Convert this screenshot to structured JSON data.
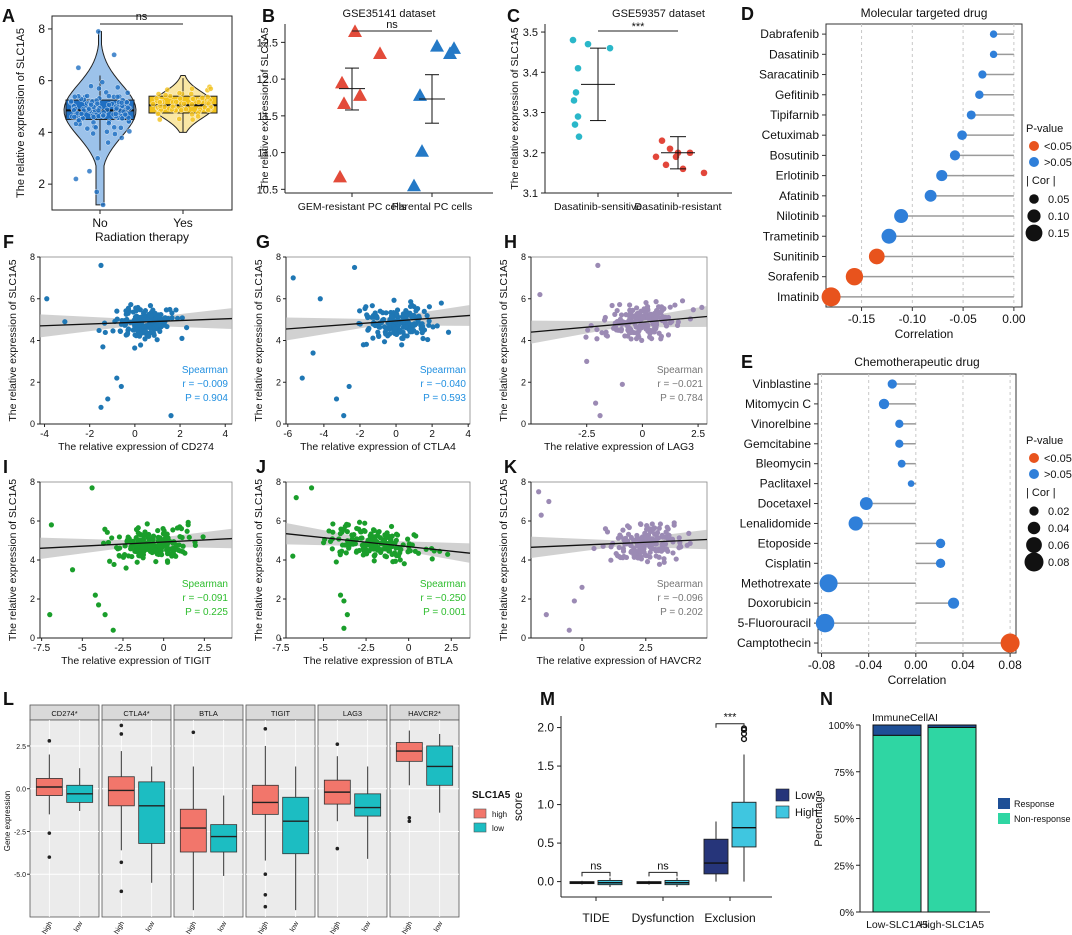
{
  "colors": {
    "sig": "#e8531d",
    "nonsig": "#2f7fd9",
    "box_blue": "#1f6fc2",
    "box_yellow": "#f2c21b",
    "red_tri": "#e34b3a",
    "blue_tri": "#2479c6",
    "teal": "#2ab7c9",
    "red_dot": "#e2463a",
    "scatter_blue": "#1f77b4",
    "scatter_green": "#1a9e2b",
    "scatter_purple": "#9b8ab4",
    "high": "#f2766b",
    "low": "#1cbdc2",
    "navy": "#26357a",
    "cyan": "#3fc6e0",
    "response": "#1e4f96",
    "nonresponse": "#2fd6a3"
  },
  "chart_data": [
    {
      "panel": "A",
      "type": "violin-box",
      "xlabel": "Radiation therapy",
      "ylabel": "The relative expression of SLC1A5",
      "ylim": [
        1,
        8.5
      ],
      "yticks": [
        "2",
        "4",
        "6",
        "8"
      ],
      "categories": [
        "No",
        "Yes"
      ],
      "annotation": "ns",
      "groups": [
        {
          "name": "No",
          "median": 4.85,
          "q1": 4.5,
          "q3": 5.25,
          "whisker_low": 3.3,
          "whisker_high": 6.2,
          "min": 1.2,
          "max": 7.9
        },
        {
          "name": "Yes",
          "median": 5.05,
          "q1": 4.75,
          "q3": 5.4,
          "whisker_low": 4.0,
          "whisker_high": 6.1,
          "min": 4.0,
          "max": 6.2
        }
      ]
    },
    {
      "panel": "B",
      "type": "scatter-errorbar",
      "title": "GSE35141 dataset",
      "ylabel": "The relative expression of SLC1A5",
      "ylim": [
        10.45,
        12.75
      ],
      "yticks": [
        "10.5",
        "11.0",
        "11.5",
        "12.0",
        "12.5"
      ],
      "categories": [
        "GEM-resistant PC cells",
        "Parental PC cells"
      ],
      "annotation": "ns",
      "groups": [
        {
          "name": "GEM-resistant PC cells",
          "values": [
            12.65,
            12.35,
            11.95,
            11.67,
            11.78,
            10.67
          ],
          "mean": 11.87,
          "low": 11.58,
          "high": 12.15
        },
        {
          "name": "Parental PC cells",
          "values": [
            12.45,
            12.42,
            12.35,
            11.78,
            11.02,
            10.55
          ],
          "mean": 11.73,
          "low": 11.4,
          "high": 12.06
        }
      ]
    },
    {
      "panel": "C",
      "type": "scatter-errorbar",
      "title": "GSE59357 dataset",
      "ylabel": "The relative expression of SLC1A5",
      "ylim": [
        3.1,
        3.52
      ],
      "yticks": [
        "3.1",
        "3.2",
        "3.3",
        "3.4",
        "3.5"
      ],
      "categories": [
        "Dasatinib-sensitive",
        "Dasatinib-resistant"
      ],
      "annotation": "***",
      "groups": [
        {
          "name": "Dasatinib-sensitive",
          "values": [
            3.48,
            3.47,
            3.46,
            3.41,
            3.35,
            3.33,
            3.29,
            3.27,
            3.24
          ],
          "mean": 3.37,
          "low": 3.28,
          "high": 3.46
        },
        {
          "name": "Dasatinib-resistant",
          "values": [
            3.23,
            3.21,
            3.2,
            3.2,
            3.19,
            3.17,
            3.16,
            3.15,
            3.19
          ],
          "mean": 3.2,
          "low": 3.16,
          "high": 3.24
        }
      ]
    },
    {
      "panel": "D",
      "type": "lollipop",
      "title": "Molecular targeted drug",
      "xlabel": "Correlation",
      "xlim": [
        -0.185,
        0.008
      ],
      "xticks": [
        -0.15,
        -0.1,
        -0.05,
        0.0
      ],
      "xtick_labels": [
        "-0.15",
        "-0.10",
        "-0.05",
        "0.00"
      ],
      "drugs": [
        "Dabrafenib",
        "Dasatinib",
        "Saracatinib",
        "Gefitinib",
        "Tipifarnib",
        "Cetuximab",
        "Bosutinib",
        "Erlotinib",
        "Afatinib",
        "Nilotinib",
        "Trametinib",
        "Sunitinib",
        "Sorafenib",
        "Imatinib"
      ],
      "values": [
        -0.02,
        -0.02,
        -0.031,
        -0.034,
        -0.042,
        -0.051,
        -0.058,
        -0.071,
        -0.082,
        -0.111,
        -0.123,
        -0.135,
        -0.157,
        -0.18
      ],
      "significant": [
        false,
        false,
        false,
        false,
        false,
        false,
        false,
        false,
        false,
        false,
        false,
        true,
        true,
        true
      ],
      "legend_title": "P-value",
      "legend_items": [
        "<0.05",
        ">0.05"
      ],
      "size_title": "| Cor |",
      "size_labels": [
        "0.05",
        "0.10",
        "0.15"
      ]
    },
    {
      "panel": "E",
      "type": "lollipop",
      "title": "Chemotherapeutic drug",
      "xlabel": "Correlation",
      "xlim": [
        -0.083,
        0.085
      ],
      "xticks": [
        -0.08,
        -0.04,
        0.0,
        0.04,
        0.08
      ],
      "xtick_labels": [
        "-0.08",
        "-0.04",
        "0.00",
        "0.04",
        "0.08"
      ],
      "drugs": [
        "Vinblastine",
        "Mitomycin C",
        "Vinorelbine",
        "Gemcitabine",
        "Bleomycin",
        "Paclitaxel",
        "Docetaxel",
        "Lenalidomide",
        "Etoposide",
        "Cisplatin",
        "Methotrexate",
        "Doxorubicin",
        "5-Fluorouracil",
        "Camptothecin"
      ],
      "values": [
        -0.02,
        -0.027,
        -0.014,
        -0.014,
        -0.012,
        -0.004,
        -0.042,
        -0.051,
        0.021,
        0.021,
        -0.074,
        0.032,
        -0.077,
        0.08
      ],
      "significant": [
        false,
        false,
        false,
        false,
        false,
        false,
        false,
        false,
        false,
        false,
        false,
        false,
        false,
        true
      ],
      "legend_title": "P-value",
      "legend_items": [
        "<0.05",
        ">0.05"
      ],
      "size_title": "| Cor |",
      "size_labels": [
        "0.02",
        "0.04",
        "0.06",
        "0.08"
      ]
    },
    {
      "panel": "F",
      "type": "scatter-regression",
      "gene": "CD274",
      "xlabel": "The relative expression of CD274",
      "ylabel": "The relative expression of SLC1A5",
      "xlim": [
        -4.2,
        4.3
      ],
      "ylim": [
        0,
        8
      ],
      "xticks": [
        -4,
        -2,
        0,
        2,
        4
      ],
      "yticks": [
        0,
        2,
        4,
        6,
        8
      ],
      "method": "Spearman",
      "r": "r = −0.009",
      "p": "P = 0.904",
      "line": [
        4.7,
        5.05
      ],
      "seed": 11,
      "center": 0.4,
      "spread": 1.0,
      "slope": 0.04,
      "outliers": [
        [
          -3.9,
          6.0
        ],
        [
          -1.5,
          7.6
        ],
        [
          -0.8,
          2.2
        ],
        [
          -1.2,
          1.2
        ],
        [
          -1.5,
          0.8
        ],
        [
          1.6,
          0.4
        ],
        [
          -0.6,
          1.8
        ],
        [
          -3.1,
          4.9
        ]
      ]
    },
    {
      "panel": "G",
      "type": "scatter-regression",
      "gene": "CTLA4",
      "xlabel": "The relative expression of CTLA4",
      "ylabel": "The relative expression of SLC1A5",
      "xlim": [
        -6.1,
        4.1
      ],
      "ylim": [
        0,
        8
      ],
      "xticks": [
        -6,
        -4,
        -2,
        0,
        2,
        4
      ],
      "yticks": [
        0,
        2,
        4,
        6,
        8
      ],
      "method": "Spearman",
      "r": "r = −0.040",
      "p": "P = 0.593",
      "line": [
        4.55,
        5.2
      ],
      "seed": 23,
      "center": 0.2,
      "spread": 1.5,
      "slope": 0.07,
      "outliers": [
        [
          -5.7,
          7.0
        ],
        [
          -4.6,
          3.4
        ],
        [
          -5.2,
          2.2
        ],
        [
          -3.3,
          1.2
        ],
        [
          -2.6,
          1.8
        ],
        [
          -2.9,
          0.4
        ],
        [
          -4.2,
          6.0
        ],
        [
          -2.3,
          7.5
        ]
      ]
    },
    {
      "panel": "H",
      "type": "scatter-regression",
      "gene": "LAG3",
      "xlabel": "The relative expression of LAG3",
      "ylabel": "The relative expression of SLC1A5",
      "xlim": [
        -5.0,
        2.9
      ],
      "ylim": [
        0,
        8
      ],
      "xticks": [
        -2.5,
        0.0,
        2.5
      ],
      "yticks": [
        0,
        2,
        4,
        6,
        8
      ],
      "method": "Spearman",
      "r": "r = −0.021",
      "p": "P = 0.784",
      "line": [
        4.4,
        5.15
      ],
      "seed": 37,
      "center": -0.1,
      "spread": 1.3,
      "slope": 0.1,
      "outliers": [
        [
          -2.0,
          7.6
        ],
        [
          -2.5,
          3.0
        ],
        [
          -2.1,
          1.0
        ],
        [
          -1.9,
          0.4
        ],
        [
          -0.9,
          1.9
        ],
        [
          -4.6,
          6.2
        ]
      ]
    },
    {
      "panel": "I",
      "type": "scatter-regression",
      "gene": "TIGIT",
      "xlabel": "The relative expression of TIGIT",
      "ylabel": "The relative expression of SLC1A5",
      "xlim": [
        -7.6,
        4.2
      ],
      "ylim": [
        0,
        8
      ],
      "xticks": [
        -7.5,
        -5.0,
        -2.5,
        0.0,
        2.5
      ],
      "yticks": [
        0,
        2,
        4,
        6,
        8
      ],
      "method": "Spearman",
      "r": "r = −0.091",
      "p": "P = 0.225",
      "line": [
        4.6,
        5.1
      ],
      "seed": 49,
      "center": -0.8,
      "spread": 1.9,
      "slope": 0.03,
      "outliers": [
        [
          -4.4,
          7.7
        ],
        [
          -4.2,
          2.2
        ],
        [
          -4.0,
          1.7
        ],
        [
          -3.6,
          1.2
        ],
        [
          -3.1,
          0.4
        ],
        [
          -6.9,
          5.8
        ],
        [
          -7.0,
          1.2
        ],
        [
          -5.6,
          3.5
        ]
      ]
    },
    {
      "panel": "J",
      "type": "scatter-regression",
      "gene": "BTLA",
      "xlabel": "The relative expression of BTLA",
      "ylabel": "The relative expression of SLC1A5",
      "xlim": [
        -7.2,
        3.6
      ],
      "ylim": [
        0,
        8
      ],
      "xticks": [
        -7.5,
        -5.0,
        -2.5,
        0.0,
        2.5
      ],
      "yticks": [
        0,
        2,
        4,
        6,
        8
      ],
      "method": "Spearman",
      "r": "r = −0.250",
      "p": "P = 0.001",
      "line": [
        5.35,
        4.35
      ],
      "seed": 61,
      "center": -2.0,
      "spread": 2.0,
      "slope": -0.09,
      "outliers": [
        [
          -5.7,
          7.7
        ],
        [
          -4.0,
          2.2
        ],
        [
          -3.8,
          1.9
        ],
        [
          -3.6,
          1.2
        ],
        [
          -3.8,
          0.5
        ],
        [
          -6.8,
          4.2
        ],
        [
          -6.6,
          7.2
        ]
      ]
    },
    {
      "panel": "K",
      "type": "scatter-regression",
      "gene": "HAVCR2",
      "xlabel": "The relative expression of HAVCR2",
      "ylabel": "The relative expression of SLC1A5",
      "xlim": [
        -2.0,
        4.9
      ],
      "ylim": [
        0,
        8
      ],
      "xticks": [
        0.0,
        2.5
      ],
      "yticks": [
        0,
        2,
        4,
        6,
        8
      ],
      "method": "Spearman",
      "r": "r = −0.096",
      "p": "P = 0.202",
      "line": [
        4.65,
        5.05
      ],
      "seed": 73,
      "center": 2.4,
      "spread": 1.0,
      "slope": 0.04,
      "outliers": [
        [
          -1.7,
          7.5
        ],
        [
          -1.3,
          7.0
        ],
        [
          -1.4,
          1.2
        ],
        [
          -0.5,
          0.4
        ],
        [
          -0.3,
          1.9
        ],
        [
          0.0,
          2.6
        ],
        [
          -1.6,
          6.3
        ]
      ]
    },
    {
      "panel": "L",
      "type": "boxplot-facets",
      "ylabel": "Gene expression",
      "ylim": [
        -7.5,
        3.9
      ],
      "yticks": [
        2.5,
        0.0,
        -2.5,
        -5.0
      ],
      "ytick_labels": [
        "2.5",
        "0.0",
        "-2.5",
        "-5.0"
      ],
      "legend_title": "SLC1A5",
      "legend_items": [
        "high",
        "low"
      ],
      "facets": [
        {
          "name": "CD274*",
          "boxes": [
            {
              "group": "high",
              "low": -1.5,
              "q1": -0.4,
              "med": 0.1,
              "q3": 0.6,
              "high": 2.0,
              "out": [
                2.8,
                -2.6,
                -4.0
              ]
            },
            {
              "group": "low",
              "low": -1.3,
              "q1": -0.8,
              "med": -0.3,
              "q3": 0.2,
              "high": 1.2,
              "out": []
            }
          ]
        },
        {
          "name": "CTLA4*",
          "boxes": [
            {
              "group": "high",
              "low": -3.6,
              "q1": -1.0,
              "med": -0.1,
              "q3": 0.7,
              "high": 2.2,
              "out": [
                3.7,
                3.2,
                -4.3,
                -6.0
              ]
            },
            {
              "group": "low",
              "low": -5.5,
              "q1": -3.2,
              "med": -1.0,
              "q3": 0.4,
              "high": 1.3,
              "out": []
            }
          ]
        },
        {
          "name": "BTLA",
          "boxes": [
            {
              "group": "high",
              "low": -7.1,
              "q1": -3.7,
              "med": -2.3,
              "q3": -1.2,
              "high": 1.3,
              "out": [
                3.3
              ]
            },
            {
              "group": "low",
              "low": -5.1,
              "q1": -3.7,
              "med": -2.8,
              "q3": -2.1,
              "high": -0.4,
              "out": []
            }
          ]
        },
        {
          "name": "TIGIT",
          "boxes": [
            {
              "group": "high",
              "low": -4.2,
              "q1": -1.5,
              "med": -0.8,
              "q3": 0.2,
              "high": 2.5,
              "out": [
                3.5,
                -5.0,
                -6.2,
                -6.9
              ]
            },
            {
              "group": "low",
              "low": -7.1,
              "q1": -3.8,
              "med": -1.9,
              "q3": -0.5,
              "high": 1.3,
              "out": []
            }
          ]
        },
        {
          "name": "LAG3",
          "boxes": [
            {
              "group": "high",
              "low": -1.9,
              "q1": -0.9,
              "med": -0.2,
              "q3": 0.5,
              "high": 1.9,
              "out": [
                2.6,
                -3.5
              ]
            },
            {
              "group": "low",
              "low": -4.1,
              "q1": -1.6,
              "med": -1.1,
              "q3": -0.3,
              "high": 1.3,
              "out": []
            }
          ]
        },
        {
          "name": "HAVCR2*",
          "boxes": [
            {
              "group": "high",
              "low": 0.2,
              "q1": 1.6,
              "med": 2.2,
              "q3": 2.7,
              "high": 3.4,
              "out": [
                -1.7,
                -1.9
              ]
            },
            {
              "group": "low",
              "low": -1.4,
              "q1": 0.2,
              "med": 1.3,
              "q3": 2.5,
              "high": 3.2,
              "out": []
            }
          ]
        }
      ],
      "xtick_labels": [
        "high",
        "low"
      ]
    },
    {
      "panel": "M",
      "type": "boxplot",
      "ylabel": "score",
      "ylim": [
        -0.2,
        2.15
      ],
      "yticks": [
        0.0,
        0.5,
        1.0,
        1.5,
        2.0
      ],
      "ytick_labels": [
        "0.0",
        "0.5",
        "1.0",
        "1.5",
        "2.0"
      ],
      "categories": [
        "TIDE",
        "Dysfunction",
        "Exclusion"
      ],
      "annotations": [
        "ns",
        "ns",
        "***"
      ],
      "legend_items": [
        "Low",
        "High"
      ],
      "groups": [
        {
          "cat": "TIDE",
          "boxes": [
            {
              "group": "Low",
              "low": -0.04,
              "q1": -0.025,
              "med": -0.015,
              "q3": 0.0,
              "high": 0.01
            },
            {
              "group": "High",
              "low": -0.07,
              "q1": -0.04,
              "med": -0.015,
              "q3": 0.015,
              "high": 0.05
            }
          ]
        },
        {
          "cat": "Dysfunction",
          "boxes": [
            {
              "group": "Low",
              "low": -0.04,
              "q1": -0.025,
              "med": -0.015,
              "q3": 0.0,
              "high": 0.01
            },
            {
              "group": "High",
              "low": -0.07,
              "q1": -0.04,
              "med": -0.015,
              "q3": 0.015,
              "high": 0.05
            }
          ]
        },
        {
          "cat": "Exclusion",
          "boxes": [
            {
              "group": "Low",
              "low": 0.0,
              "q1": 0.1,
              "med": 0.24,
              "q3": 0.55,
              "high": 0.78,
              "out": []
            },
            {
              "group": "High",
              "low": 0.0,
              "q1": 0.45,
              "med": 0.7,
              "q3": 1.03,
              "high": 1.65,
              "out": [
                1.85,
                1.92,
                1.97,
                1.99
              ]
            }
          ]
        }
      ]
    },
    {
      "panel": "N",
      "type": "stacked-bar",
      "title": "ImmuneCellAI",
      "ylabel": "Percentage",
      "ytick_labels": [
        "0%",
        "25%",
        "50%",
        "75%",
        "100%"
      ],
      "categories": [
        "Low-SLC1A5",
        "High-SLC1A5"
      ],
      "series": [
        {
          "name": "Non-response",
          "values": [
            94.5,
            98.7
          ]
        },
        {
          "name": "Response",
          "values": [
            5.5,
            1.3
          ]
        }
      ],
      "legend_items": [
        "Response",
        "Non-response"
      ]
    }
  ]
}
